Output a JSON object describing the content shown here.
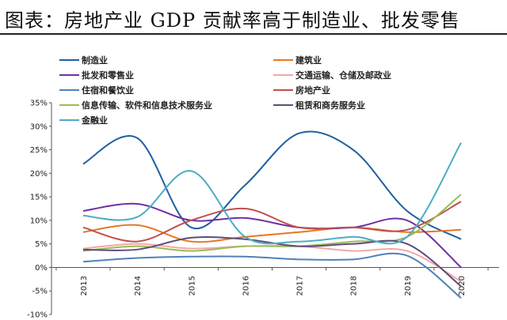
{
  "chart_data": {
    "type": "line",
    "title": "图表：房地产业 GDP 贡献率高于制造业、批发零售",
    "xlabel": "",
    "ylabel": "",
    "categories": [
      "2013",
      "2014",
      "2015",
      "2016",
      "2017",
      "2018",
      "2019",
      "2020"
    ],
    "ylim": [
      -10,
      35
    ],
    "yticks": [
      "-10%",
      "-5%",
      "0%",
      "5%",
      "10%",
      "15%",
      "20%",
      "25%",
      "30%",
      "35%"
    ],
    "legend_position": "top",
    "series": [
      {
        "name": "制造业",
        "color": "#1f5fa0",
        "values": [
          22,
          27.5,
          8.5,
          17.5,
          28.5,
          25,
          12,
          6
        ]
      },
      {
        "name": "建筑业",
        "color": "#e87722",
        "values": [
          7.5,
          9,
          5.5,
          6.5,
          7.5,
          8.5,
          7.5,
          8
        ]
      },
      {
        "name": "批发和零售业",
        "color": "#7030a0",
        "values": [
          12,
          13.5,
          10,
          10.5,
          8.5,
          8.5,
          10,
          0
        ]
      },
      {
        "name": "交通运输、仓储及邮政业",
        "color": "#f2a7a7",
        "values": [
          4,
          5,
          4,
          4.5,
          4.5,
          3.5,
          3.5,
          -3
        ]
      },
      {
        "name": "住宿和餐饮业",
        "color": "#4f81bd",
        "values": [
          1.2,
          2,
          2.3,
          2.3,
          1.7,
          1.7,
          2.5,
          -6.5
        ]
      },
      {
        "name": "房地产业",
        "color": "#c0504d",
        "values": [
          8.5,
          5.5,
          10,
          12.5,
          8.5,
          8.5,
          8,
          14
        ]
      },
      {
        "name": "信息传输、软件和信息技术服务业",
        "color": "#9bbb59",
        "values": [
          3.5,
          4.5,
          3.5,
          4.5,
          4.5,
          5.5,
          6.5,
          15.5
        ]
      },
      {
        "name": "租赁和商务服务业",
        "color": "#604a7b",
        "values": [
          3.8,
          3.8,
          6.3,
          6,
          4.5,
          5,
          5,
          -4
        ]
      },
      {
        "name": "金融业",
        "color": "#4bacc6",
        "values": [
          11,
          10.7,
          20.5,
          6.5,
          5.5,
          6.5,
          6.5,
          26.5
        ]
      }
    ]
  }
}
